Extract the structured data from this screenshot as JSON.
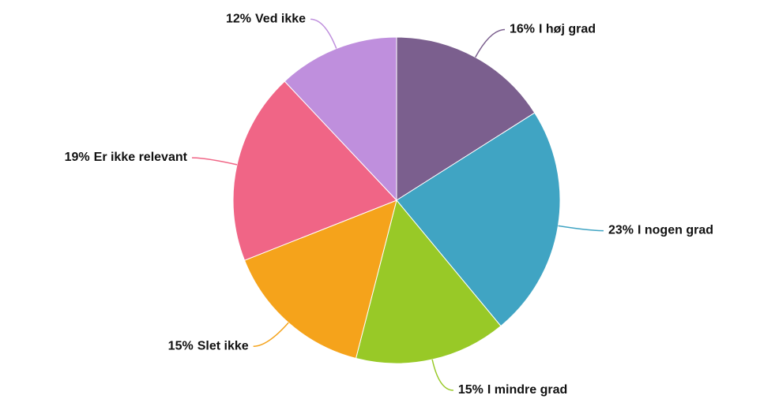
{
  "chart_data": {
    "type": "pie",
    "categories": [
      "I høj grad",
      "I nogen grad",
      "I mindre grad",
      "Slet ikke",
      "Er ikke relevant",
      "Ved ikke"
    ],
    "values": [
      16,
      23,
      15,
      15,
      19,
      12
    ],
    "value_labels": [
      "16%",
      "23%",
      "15%",
      "15%",
      "19%",
      "12%"
    ],
    "colors": [
      "#7b5f8e",
      "#40a4c3",
      "#98c927",
      "#f5a31b",
      "#f06586",
      "#bf8fdd"
    ]
  }
}
